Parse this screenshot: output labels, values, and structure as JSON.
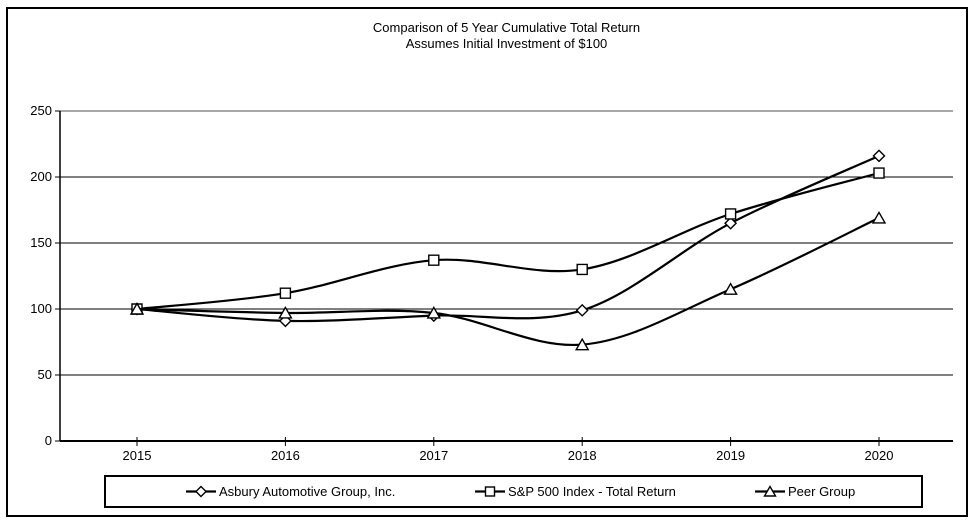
{
  "chart_data": {
    "type": "line",
    "title": "Comparison of 5 Year Cumulative Total Return",
    "subtitle": "Assumes Initial Investment of $100",
    "categories": [
      "2015",
      "2016",
      "2017",
      "2018",
      "2019",
      "2020"
    ],
    "series": [
      {
        "name": "Asbury Automotive Group, Inc.",
        "marker": "diamond",
        "values": [
          100,
          91,
          95,
          99,
          165,
          216
        ]
      },
      {
        "name": "S&P 500 Index - Total Return",
        "marker": "square",
        "values": [
          100,
          112,
          137,
          130,
          172,
          203
        ]
      },
      {
        "name": "Peer Group",
        "marker": "triangle",
        "values": [
          100,
          97,
          97,
          73,
          115,
          169
        ]
      }
    ],
    "y_ticks": [
      0,
      50,
      100,
      150,
      200,
      250
    ],
    "ylim": [
      0,
      250
    ],
    "grid": true,
    "legend_position": "bottom",
    "line_style": "smooth",
    "colors": {
      "line": "#000000",
      "grid": "#000000",
      "top_grid": "#8c8c8c",
      "axis": "#000000",
      "marker_fill": "#ffffff",
      "text": "#000000"
    }
  }
}
